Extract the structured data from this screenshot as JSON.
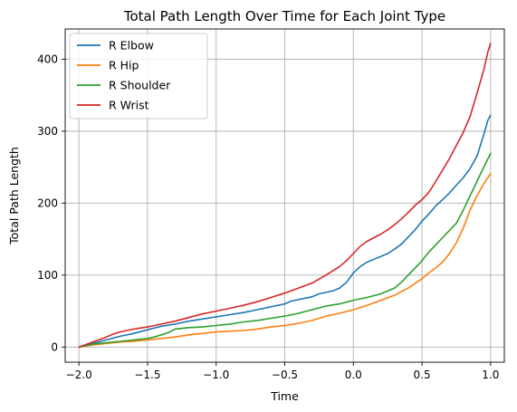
{
  "chart_data": {
    "type": "line",
    "title": "Total Path Length Over Time for Each Joint Type",
    "xlabel": "Time",
    "ylabel": "Total Path Length",
    "xlim": [
      -2.1,
      1.1
    ],
    "ylim": [
      -21,
      442
    ],
    "xticks": [
      -2.0,
      -1.5,
      -1.0,
      -0.5,
      0.0,
      0.5,
      1.0
    ],
    "xtick_labels": [
      "−2.0",
      "−1.5",
      "−1.0",
      "−0.5",
      "0.0",
      "0.5",
      "1.0"
    ],
    "yticks": [
      0,
      100,
      200,
      300,
      400
    ],
    "ytick_labels": [
      "0",
      "100",
      "200",
      "300",
      "400"
    ],
    "grid": true,
    "legend_position": "top-left",
    "series": [
      {
        "name": "R Elbow",
        "color": "#1f77b4",
        "x": [
          -2.0,
          -1.9,
          -1.8,
          -1.7,
          -1.6,
          -1.5,
          -1.4,
          -1.3,
          -1.2,
          -1.1,
          -1.0,
          -0.9,
          -0.8,
          -0.7,
          -0.6,
          -0.5,
          -0.45,
          -0.4,
          -0.35,
          -0.3,
          -0.25,
          -0.2,
          -0.15,
          -0.1,
          -0.05,
          0.0,
          0.05,
          0.1,
          0.15,
          0.2,
          0.25,
          0.3,
          0.35,
          0.4,
          0.45,
          0.5,
          0.55,
          0.6,
          0.65,
          0.7,
          0.75,
          0.8,
          0.85,
          0.9,
          0.95,
          0.98,
          1.0
        ],
        "y": [
          0,
          5,
          10,
          15,
          19,
          24,
          29,
          32,
          36,
          39,
          42,
          45,
          48,
          52,
          56,
          60,
          64,
          66,
          68,
          70,
          74,
          76,
          78,
          82,
          90,
          103,
          112,
          118,
          122,
          126,
          130,
          136,
          143,
          153,
          163,
          175,
          185,
          196,
          205,
          214,
          225,
          235,
          248,
          265,
          295,
          315,
          322
        ]
      },
      {
        "name": "R Hip",
        "color": "#ff7f0e",
        "x": [
          -2.0,
          -1.9,
          -1.8,
          -1.7,
          -1.6,
          -1.5,
          -1.4,
          -1.3,
          -1.2,
          -1.1,
          -1.0,
          -0.9,
          -0.8,
          -0.7,
          -0.6,
          -0.5,
          -0.4,
          -0.3,
          -0.2,
          -0.1,
          0.0,
          0.1,
          0.2,
          0.3,
          0.4,
          0.5,
          0.55,
          0.6,
          0.65,
          0.7,
          0.75,
          0.8,
          0.85,
          0.9,
          0.95,
          1.0
        ],
        "y": [
          0,
          3,
          5,
          7,
          8,
          10,
          12,
          14,
          17,
          19,
          21,
          22,
          23,
          25,
          28,
          30,
          33,
          37,
          43,
          47,
          52,
          58,
          65,
          72,
          82,
          95,
          103,
          110,
          118,
          130,
          145,
          165,
          190,
          210,
          227,
          241
        ]
      },
      {
        "name": "R Shoulder",
        "color": "#2ca02c",
        "x": [
          -2.0,
          -1.9,
          -1.8,
          -1.7,
          -1.6,
          -1.5,
          -1.45,
          -1.4,
          -1.35,
          -1.3,
          -1.2,
          -1.1,
          -1.0,
          -0.9,
          -0.8,
          -0.7,
          -0.6,
          -0.5,
          -0.4,
          -0.3,
          -0.2,
          -0.1,
          0.0,
          0.1,
          0.2,
          0.3,
          0.35,
          0.4,
          0.45,
          0.5,
          0.55,
          0.6,
          0.65,
          0.7,
          0.75,
          0.8,
          0.85,
          0.9,
          0.95,
          1.0
        ],
        "y": [
          0,
          4,
          6,
          8,
          10,
          12,
          14,
          17,
          20,
          25,
          27,
          28,
          30,
          32,
          35,
          37,
          40,
          43,
          47,
          52,
          57,
          60,
          65,
          69,
          74,
          82,
          90,
          100,
          110,
          120,
          132,
          142,
          152,
          162,
          172,
          190,
          210,
          230,
          250,
          269
        ]
      },
      {
        "name": "R Wrist",
        "color": "#d62728",
        "x": [
          -2.0,
          -1.9,
          -1.8,
          -1.75,
          -1.7,
          -1.6,
          -1.5,
          -1.4,
          -1.3,
          -1.2,
          -1.1,
          -1.0,
          -0.9,
          -0.8,
          -0.7,
          -0.6,
          -0.5,
          -0.4,
          -0.3,
          -0.2,
          -0.1,
          -0.05,
          0.0,
          0.05,
          0.1,
          0.15,
          0.2,
          0.25,
          0.3,
          0.35,
          0.4,
          0.45,
          0.5,
          0.55,
          0.6,
          0.65,
          0.7,
          0.75,
          0.8,
          0.85,
          0.9,
          0.95,
          0.98,
          1.0
        ],
        "y": [
          0,
          7,
          14,
          18,
          21,
          25,
          28,
          32,
          36,
          41,
          46,
          50,
          54,
          58,
          63,
          69,
          75,
          82,
          89,
          100,
          112,
          120,
          130,
          140,
          147,
          152,
          157,
          163,
          170,
          178,
          187,
          197,
          205,
          215,
          230,
          246,
          262,
          280,
          298,
          320,
          352,
          385,
          410,
          422
        ]
      }
    ]
  }
}
